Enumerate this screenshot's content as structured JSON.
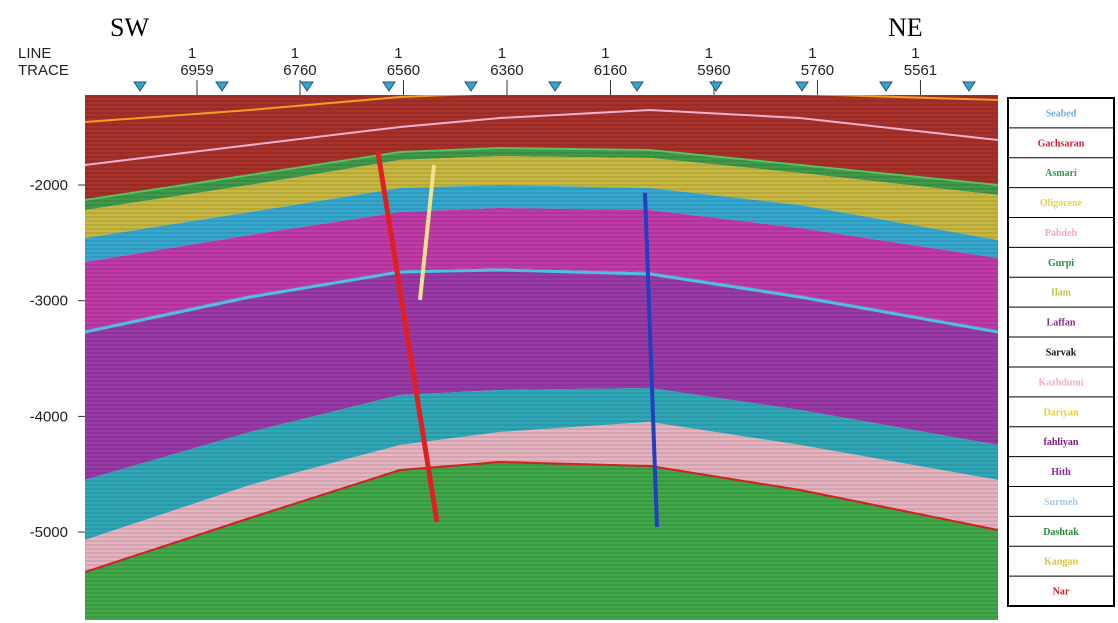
{
  "header": {
    "left": "SW",
    "right": "NE"
  },
  "axis": {
    "line_label": "LINE",
    "trace_label": "TRACE",
    "lines": [
      1,
      1,
      1,
      1,
      1,
      1,
      1,
      1
    ],
    "traces": [
      6959,
      6760,
      6560,
      6360,
      6160,
      5960,
      5760,
      5561
    ],
    "depth_ticks": [
      -2000,
      -3000,
      -4000,
      -5000
    ]
  },
  "legend": [
    {
      "label": "Seabed",
      "color": "#6cb4e0"
    },
    {
      "label": "Gachsaran",
      "color": "#d0203a"
    },
    {
      "label": "Asmari",
      "color": "#2f9a4a"
    },
    {
      "label": "Oligocene",
      "color": "#e8d040"
    },
    {
      "label": "Pabdeh",
      "color": "#f0a8c8"
    },
    {
      "label": "Gurpi",
      "color": "#2f8a40"
    },
    {
      "label": "Ilam",
      "color": "#c8c040"
    },
    {
      "label": "Laffan",
      "color": "#8a2a8a"
    },
    {
      "label": "Sarvak",
      "color": "#111111"
    },
    {
      "label": "Kazhdumi",
      "color": "#f0b0c0"
    },
    {
      "label": "Dariyan",
      "color": "#e8d030"
    },
    {
      "label": "fahliyan",
      "color": "#7a1a7a"
    },
    {
      "label": "Hith",
      "color": "#8a2a9a"
    },
    {
      "label": "Surmeh",
      "color": "#a8c8e8"
    },
    {
      "label": "Dashtak",
      "color": "#2a8a3a"
    },
    {
      "label": "Kangan",
      "color": "#e0c040"
    },
    {
      "label": "Nar",
      "color": "#c82020"
    }
  ]
}
